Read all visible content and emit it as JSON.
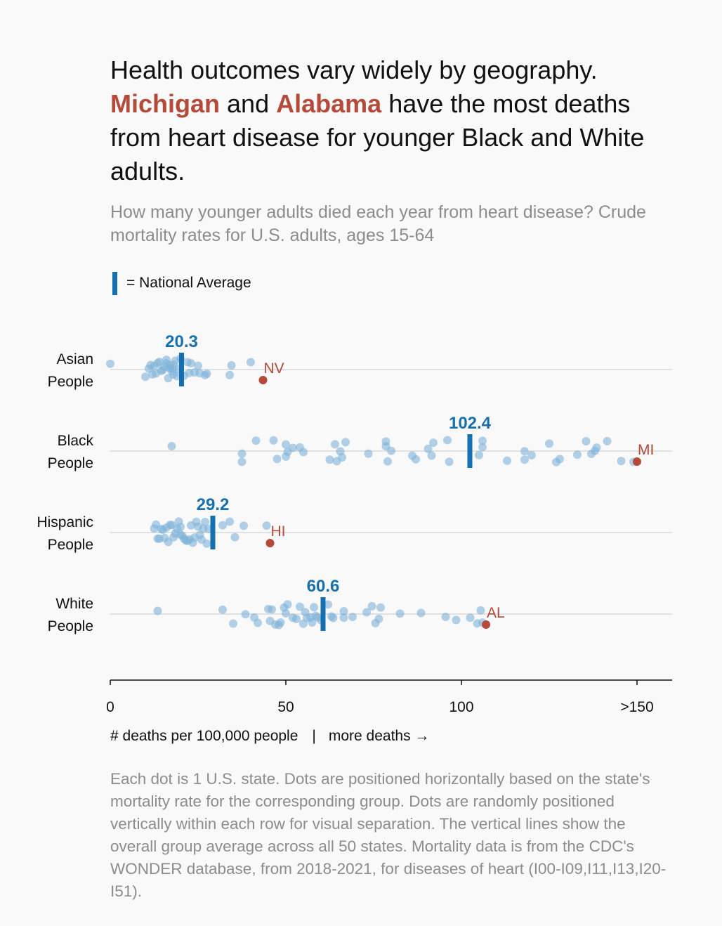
{
  "title": {
    "line1": "Health outcomes vary widely by geography.",
    "highlight1": "Michigan",
    "and": "and",
    "highlight2": "Alabama",
    "line2_rest": "have the most deaths from heart disease for younger Black and White adults."
  },
  "subtitle": "How many younger adults died each year from heart disease? Crude mortality rates for U.S. adults, ages 15-64",
  "legend": {
    "label": "= National Average"
  },
  "axis_note": {
    "left": "# deaths per 100,000 people",
    "sep": "|",
    "right": "more deaths →"
  },
  "footnote": "Each dot is 1 U.S. state. Dots are positioned horizontally based on the state's mortality rate for the corresponding group. Dots are randomly positioned vertically within each row for visual separation. The vertical lines show the overall group average across all 50 states. Mortality data is from the CDC's WONDER database, from 2018-2021, for diseases of heart (I00-I09,I11,I13,I20-I51).",
  "colors": {
    "dot": "#7fb2d8",
    "average": "#1470b0",
    "highlight": "#b5493a",
    "text": "#111111",
    "muted": "#8c8c8c"
  },
  "chart_data": {
    "type": "scatter",
    "xlim": [
      0,
      160
    ],
    "x_ticks": [
      0,
      50,
      100,
      150
    ],
    "x_tick_labels": [
      "0",
      "50",
      "100",
      ">150"
    ],
    "xlabel": "# deaths per 100,000 people",
    "series": [
      {
        "row_label_1": "Asian",
        "row_label_2": "People",
        "average": 20.3,
        "average_label": "20.3",
        "highlight": {
          "state": "NV",
          "value": 43.5
        },
        "values": [
          0,
          10,
          11,
          11.5,
          12,
          12.5,
          13,
          13.5,
          14,
          14.5,
          15,
          15.5,
          16,
          16,
          16.5,
          17,
          17,
          17.5,
          17.8,
          18,
          18,
          18.5,
          19,
          19.5,
          20,
          21,
          22,
          22.5,
          23,
          24,
          25,
          25.5,
          27,
          27.5,
          34,
          34.5,
          40
        ]
      },
      {
        "row_label_1": "Black",
        "row_label_2": "People",
        "average": 102.4,
        "average_label": "102.4",
        "highlight": {
          "state": "MI",
          "value": 150
        },
        "values": [
          17.5,
          37.5,
          37.5,
          41.5,
          46.5,
          47.5,
          50,
          50,
          50.5,
          52,
          54,
          55,
          62.5,
          64,
          64.5,
          65.5,
          66,
          67,
          73.5,
          78.5,
          78.5,
          79,
          80,
          86,
          87,
          90.5,
          91.5,
          92,
          96,
          96.5,
          105,
          106,
          106,
          113,
          118,
          118,
          120,
          125,
          127,
          128,
          133,
          135.5,
          137,
          138,
          138.5,
          141.5,
          145.5,
          149
        ]
      },
      {
        "row_label_1": "Hispanic",
        "row_label_2": "People",
        "average": 29.2,
        "average_label": "29.2",
        "highlight": {
          "state": "HI",
          "value": 45.5
        },
        "values": [
          12.5,
          13,
          13.5,
          14,
          14.5,
          15,
          15.5,
          16,
          16.5,
          17,
          17.5,
          18,
          18.5,
          19,
          19.5,
          20,
          20,
          20.5,
          21,
          21.5,
          22,
          22.5,
          23,
          23.5,
          24,
          24.5,
          25,
          25.5,
          26,
          26.5,
          27,
          27.5,
          28,
          32,
          34,
          35.5,
          38,
          44.5
        ]
      },
      {
        "row_label_1": "White",
        "row_label_2": "People",
        "average": 60.6,
        "average_label": "60.6",
        "highlight": {
          "state": "AL",
          "value": 107
        },
        "values": [
          13.5,
          32,
          35,
          38.5,
          41,
          42,
          45,
          45.5,
          46,
          47,
          48,
          48.5,
          49.5,
          50,
          50.5,
          52,
          53,
          54,
          55,
          55.5,
          56,
          57,
          57.5,
          58,
          58.5,
          59,
          60,
          62,
          63,
          63.5,
          66.5,
          66.5,
          69,
          73,
          74.5,
          75.5,
          76.5,
          77,
          82.5,
          88.5,
          95.5,
          98.5,
          102.5,
          104.5,
          105.5,
          106
        ]
      }
    ]
  }
}
